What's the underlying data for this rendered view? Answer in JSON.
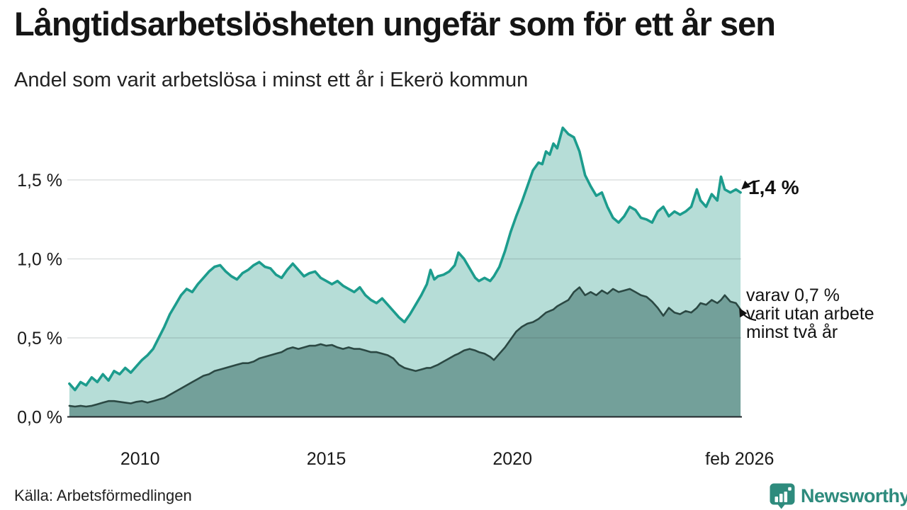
{
  "header": {
    "title": "Långtidsarbetslösheten ungefär som för ett år sen",
    "subtitle": "Andel som varit arbetslösa i minst ett år i Ekerö kommun"
  },
  "annotations": {
    "primary": "1,4 %",
    "secondary": [
      "varav 0,7 %",
      "varit utan arbete",
      "minst två år"
    ]
  },
  "footer": {
    "source": "Källa: Arbetsförmedlingen",
    "brand": "Newsworthy"
  },
  "colors": {
    "series1_line": "#1c9c8d",
    "series1_fill": "#b6ddd7",
    "series2_line": "#2b4843",
    "series2_fill": "#73a09a",
    "gridline": "rgba(51,68,68,0.16)",
    "axis": "#20262a",
    "brand_teal": "#2e8b7d",
    "text": "#1a1a1a"
  },
  "chart_data": {
    "type": "area",
    "title": "Långtidsarbetslösheten ungefär som för ett år sen",
    "subtitle": "Andel som varit arbetslösa i minst ett år i Ekerö kommun",
    "unit": "%",
    "source": "Källa: Arbetsförmedlingen",
    "legend": "none (series labeled directly on chart)",
    "x_axis": {
      "range": [
        2008.08,
        2026.13
      ],
      "ticks": [
        {
          "value": 2010,
          "label": "2010"
        },
        {
          "value": 2015,
          "label": "2015"
        },
        {
          "value": 2020,
          "label": "2020"
        },
        {
          "value": 2026.1,
          "label": "feb 2026"
        }
      ]
    },
    "y_axis": {
      "range": [
        0,
        1.9
      ],
      "grid": true,
      "gridlines": [
        0.5,
        1.0,
        1.5
      ],
      "ticks": [
        {
          "value": 0,
          "label": "0,0 %"
        },
        {
          "value": 0.5,
          "label": "0,5 %"
        },
        {
          "value": 1.0,
          "label": "1,0 %"
        },
        {
          "value": 1.5,
          "label": "1,5 %"
        }
      ]
    },
    "x": [
      2008.1,
      2008.25,
      2008.4,
      2008.55,
      2008.7,
      2008.85,
      2009.0,
      2009.15,
      2009.3,
      2009.45,
      2009.6,
      2009.75,
      2009.9,
      2010.05,
      2010.2,
      2010.35,
      2010.5,
      2010.65,
      2010.8,
      2010.95,
      2011.1,
      2011.25,
      2011.4,
      2011.55,
      2011.7,
      2011.85,
      2012.0,
      2012.15,
      2012.3,
      2012.45,
      2012.6,
      2012.75,
      2012.9,
      2013.05,
      2013.2,
      2013.35,
      2013.5,
      2013.65,
      2013.8,
      2013.95,
      2014.1,
      2014.25,
      2014.4,
      2014.55,
      2014.7,
      2014.85,
      2015.0,
      2015.15,
      2015.3,
      2015.45,
      2015.6,
      2015.75,
      2015.9,
      2016.05,
      2016.2,
      2016.35,
      2016.5,
      2016.65,
      2016.8,
      2016.95,
      2017.1,
      2017.25,
      2017.4,
      2017.55,
      2017.7,
      2017.8,
      2017.9,
      2018.0,
      2018.15,
      2018.3,
      2018.45,
      2018.55,
      2018.7,
      2018.85,
      2019.0,
      2019.1,
      2019.25,
      2019.4,
      2019.5,
      2019.65,
      2019.8,
      2019.95,
      2020.1,
      2020.25,
      2020.4,
      2020.55,
      2020.7,
      2020.8,
      2020.9,
      2021.0,
      2021.1,
      2021.2,
      2021.35,
      2021.5,
      2021.65,
      2021.8,
      2021.95,
      2022.1,
      2022.25,
      2022.4,
      2022.55,
      2022.7,
      2022.85,
      2023.0,
      2023.15,
      2023.3,
      2023.45,
      2023.6,
      2023.75,
      2023.9,
      2024.05,
      2024.2,
      2024.35,
      2024.5,
      2024.65,
      2024.8,
      2024.95,
      2025.05,
      2025.2,
      2025.35,
      2025.5,
      2025.6,
      2025.7,
      2025.85,
      2026.0,
      2026.125
    ],
    "series": [
      {
        "name": "Andel arbetslösa minst ett år",
        "end_label": "1,4 %",
        "end_value": 1.4,
        "line_color": "#1c9c8d",
        "fill_color": "#b6ddd7",
        "values": [
          0.21,
          0.17,
          0.22,
          0.2,
          0.25,
          0.22,
          0.27,
          0.23,
          0.29,
          0.27,
          0.31,
          0.28,
          0.32,
          0.36,
          0.39,
          0.43,
          0.5,
          0.57,
          0.65,
          0.71,
          0.77,
          0.81,
          0.79,
          0.84,
          0.88,
          0.92,
          0.95,
          0.96,
          0.92,
          0.89,
          0.87,
          0.91,
          0.93,
          0.96,
          0.98,
          0.95,
          0.94,
          0.9,
          0.88,
          0.93,
          0.97,
          0.93,
          0.89,
          0.91,
          0.92,
          0.88,
          0.86,
          0.84,
          0.86,
          0.83,
          0.81,
          0.79,
          0.82,
          0.77,
          0.74,
          0.72,
          0.75,
          0.71,
          0.67,
          0.63,
          0.6,
          0.65,
          0.71,
          0.77,
          0.84,
          0.93,
          0.87,
          0.89,
          0.9,
          0.92,
          0.96,
          1.04,
          1.0,
          0.94,
          0.88,
          0.86,
          0.88,
          0.86,
          0.89,
          0.95,
          1.05,
          1.17,
          1.27,
          1.36,
          1.46,
          1.56,
          1.61,
          1.6,
          1.68,
          1.66,
          1.73,
          1.7,
          1.83,
          1.79,
          1.77,
          1.68,
          1.53,
          1.46,
          1.4,
          1.42,
          1.33,
          1.26,
          1.23,
          1.27,
          1.33,
          1.31,
          1.26,
          1.25,
          1.23,
          1.3,
          1.33,
          1.27,
          1.3,
          1.28,
          1.3,
          1.33,
          1.44,
          1.37,
          1.33,
          1.41,
          1.37,
          1.52,
          1.44,
          1.42,
          1.44,
          1.42
        ]
      },
      {
        "name": "varav utan arbete minst två år",
        "end_label": "varav 0,7 % varit utan arbete minst två år",
        "end_value": 0.7,
        "line_color": "#2b4843",
        "fill_color": "#73a09a",
        "values": [
          0.07,
          0.065,
          0.07,
          0.065,
          0.07,
          0.08,
          0.09,
          0.1,
          0.1,
          0.095,
          0.09,
          0.085,
          0.095,
          0.1,
          0.09,
          0.1,
          0.11,
          0.12,
          0.14,
          0.16,
          0.18,
          0.2,
          0.22,
          0.24,
          0.26,
          0.27,
          0.29,
          0.3,
          0.31,
          0.32,
          0.33,
          0.34,
          0.34,
          0.35,
          0.37,
          0.38,
          0.39,
          0.4,
          0.41,
          0.43,
          0.44,
          0.43,
          0.44,
          0.45,
          0.45,
          0.46,
          0.45,
          0.455,
          0.44,
          0.43,
          0.44,
          0.43,
          0.43,
          0.42,
          0.41,
          0.41,
          0.4,
          0.39,
          0.37,
          0.33,
          0.31,
          0.3,
          0.29,
          0.3,
          0.31,
          0.31,
          0.32,
          0.33,
          0.35,
          0.37,
          0.39,
          0.4,
          0.42,
          0.43,
          0.42,
          0.41,
          0.4,
          0.38,
          0.36,
          0.4,
          0.44,
          0.49,
          0.54,
          0.57,
          0.59,
          0.6,
          0.62,
          0.64,
          0.66,
          0.67,
          0.68,
          0.7,
          0.72,
          0.74,
          0.79,
          0.82,
          0.77,
          0.79,
          0.77,
          0.8,
          0.78,
          0.81,
          0.79,
          0.8,
          0.81,
          0.79,
          0.77,
          0.76,
          0.73,
          0.69,
          0.64,
          0.69,
          0.66,
          0.65,
          0.67,
          0.66,
          0.69,
          0.72,
          0.71,
          0.74,
          0.72,
          0.74,
          0.77,
          0.73,
          0.72,
          0.68
        ]
      }
    ]
  }
}
